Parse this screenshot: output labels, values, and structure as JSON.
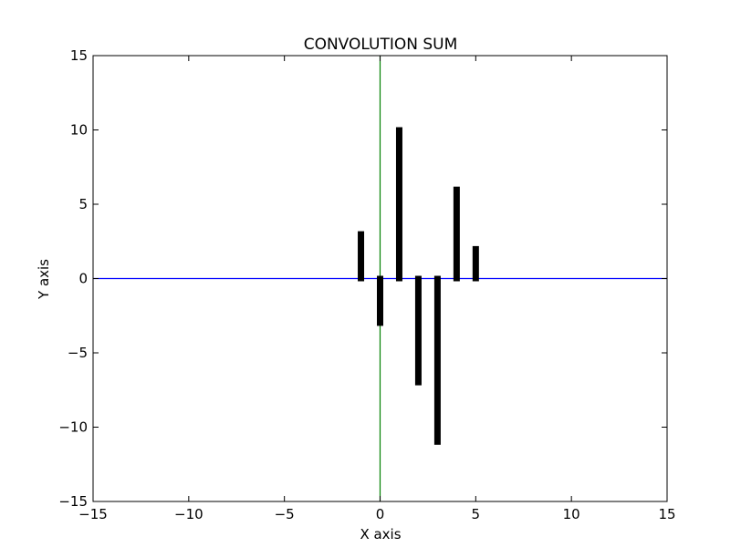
{
  "chart_data": {
    "type": "bar",
    "title": "CONVOLUTION SUM",
    "xlabel": "X axis",
    "ylabel": "Y axis",
    "xlim": [
      -15,
      15
    ],
    "ylim": [
      -15,
      15
    ],
    "xticks": [
      -15,
      -10,
      -5,
      0,
      5,
      10,
      15
    ],
    "yticks": [
      -15,
      -10,
      -5,
      0,
      5,
      10,
      15
    ],
    "xtick_labels": [
      "−15",
      "−10",
      "−5",
      "0",
      "5",
      "10",
      "15"
    ],
    "ytick_labels": [
      "−15",
      "−10",
      "−5",
      "0",
      "5",
      "10",
      "15"
    ],
    "x": [
      -1,
      0,
      1,
      2,
      3,
      4,
      5
    ],
    "values": [
      3,
      -3,
      10,
      -7,
      -11,
      6,
      2
    ],
    "bar_color": "#000000",
    "x_axis_line_color": "#0000ff",
    "y_axis_line_color": "#008000",
    "grid": false
  }
}
